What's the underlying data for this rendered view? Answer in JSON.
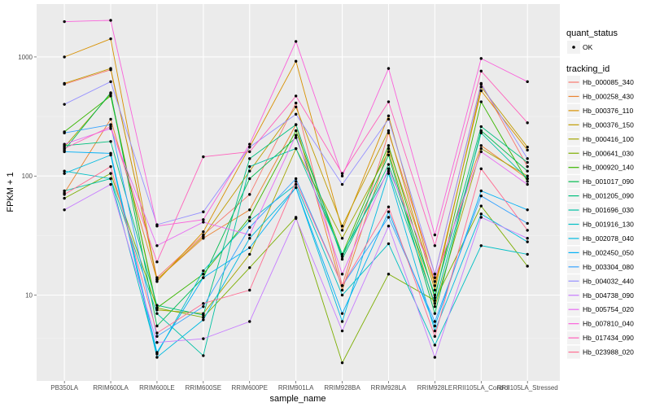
{
  "chart_data": {
    "type": "line",
    "title": "",
    "xlabel": "sample_name",
    "ylabel": "FPKM + 1",
    "yscale": "log10",
    "ylim": [
      1.9,
      2780
    ],
    "y_ticks": [
      10,
      100,
      1000
    ],
    "y_tick_labels": [
      "10",
      "100",
      "1000"
    ],
    "grid": true,
    "legend_placement": "right",
    "categories": [
      "PB350LA",
      "RRIM600LA",
      "RRIM600LE",
      "RRIM600SE",
      "RRIM600PE",
      "RRIM901LA",
      "RRIM928BA",
      "RRIM928LA",
      "RRIM928LE",
      "RRII105LA_Control",
      "RRII105LA_Stressed"
    ],
    "shape_legend": {
      "title": "quant_status",
      "entries": [
        "OK"
      ]
    },
    "color_legend_title": "tracking_id",
    "series": [
      {
        "name": "Hb_000085_340",
        "color": "#F8766D",
        "values": [
          590,
          780,
          14,
          32,
          70,
          410,
          12,
          230,
          15,
          600,
          120
        ]
      },
      {
        "name": "Hb_000258_430",
        "color": "#EA8331",
        "values": [
          72,
          300,
          13.5,
          30,
          52,
          270,
          11,
          170,
          13,
          180,
          95
        ]
      },
      {
        "name": "Hb_000376_110",
        "color": "#D89000",
        "values": [
          1000,
          1420,
          13,
          34,
          175,
          920,
          35,
          320,
          12,
          520,
          165
        ]
      },
      {
        "name": "Hb_000376_150",
        "color": "#C09B00",
        "values": [
          600,
          800,
          13.5,
          31,
          110,
          380,
          38,
          240,
          11,
          560,
          175
        ]
      },
      {
        "name": "Hb_000416_100",
        "color": "#A3A500",
        "values": [
          175,
          490,
          7.5,
          7,
          22,
          170,
          30,
          160,
          8,
          170,
          100
        ]
      },
      {
        "name": "Hb_000641_030",
        "color": "#7CAE00",
        "values": [
          65,
          105,
          7.8,
          6.5,
          17,
          45,
          2.7,
          15,
          9,
          56,
          17.5
        ]
      },
      {
        "name": "Hb_000920_140",
        "color": "#39B600",
        "values": [
          235,
          470,
          7.8,
          15,
          45,
          240,
          22,
          180,
          9.5,
          420,
          90
        ]
      },
      {
        "name": "Hb_001017_090",
        "color": "#00BB4E",
        "values": [
          165,
          500,
          5.5,
          14,
          95,
          210,
          21,
          150,
          7,
          240,
          110
        ]
      },
      {
        "name": "Hb_001205_090",
        "color": "#00BF7D",
        "values": [
          180,
          195,
          8.2,
          6.8,
          140,
          270,
          20,
          125,
          10,
          260,
          130
        ]
      },
      {
        "name": "Hb_001696_030",
        "color": "#00C1A3",
        "values": [
          75,
          95,
          7,
          3.1,
          120,
          170,
          22,
          110,
          8.5,
          230,
          95
        ]
      },
      {
        "name": "Hb_001916_130",
        "color": "#00BFC4",
        "values": [
          110,
          95,
          3.2,
          16,
          42,
          85,
          10,
          27,
          3.8,
          26,
          22
        ]
      },
      {
        "name": "Hb_002078_040",
        "color": "#00BAE0",
        "values": [
          105,
          150,
          3,
          6.2,
          30,
          80,
          6,
          105,
          5,
          48,
          28
        ]
      },
      {
        "name": "Hb_002450_050",
        "color": "#00B0F6",
        "values": [
          160,
          155,
          3.3,
          14,
          25,
          80,
          7,
          50,
          5.5,
          75,
          52
        ]
      },
      {
        "name": "Hb_003304_080",
        "color": "#35A2FF",
        "values": [
          230,
          270,
          4.5,
          8,
          37,
          95,
          12,
          45,
          6,
          68,
          40
        ]
      },
      {
        "name": "Hb_004032_440",
        "color": "#9590FF",
        "values": [
          400,
          620,
          39,
          50,
          175,
          330,
          85,
          300,
          15,
          590,
          140
        ]
      },
      {
        "name": "Hb_004738_090",
        "color": "#C77CFF",
        "values": [
          52,
          85,
          4,
          4.3,
          6,
          44,
          5,
          38,
          3,
          45,
          30
        ]
      },
      {
        "name": "Hb_005754_020",
        "color": "#E76BF3",
        "values": [
          185,
          250,
          26,
          41,
          32,
          220,
          15,
          115,
          14,
          160,
          85
        ]
      },
      {
        "name": "Hb_007810_040",
        "color": "#FA62DB",
        "values": [
          1980,
          2030,
          38,
          43,
          185,
          1350,
          100,
          800,
          32,
          970,
          620
        ]
      },
      {
        "name": "Hb_017434_090",
        "color": "#FF62BC",
        "values": [
          170,
          260,
          19,
          145,
          160,
          470,
          105,
          420,
          26,
          760,
          280
        ]
      },
      {
        "name": "Hb_023988_020",
        "color": "#FF6C91",
        "values": [
          70,
          120,
          4.8,
          8.5,
          11,
          90,
          12,
          55,
          4.5,
          115,
          35
        ]
      }
    ]
  }
}
